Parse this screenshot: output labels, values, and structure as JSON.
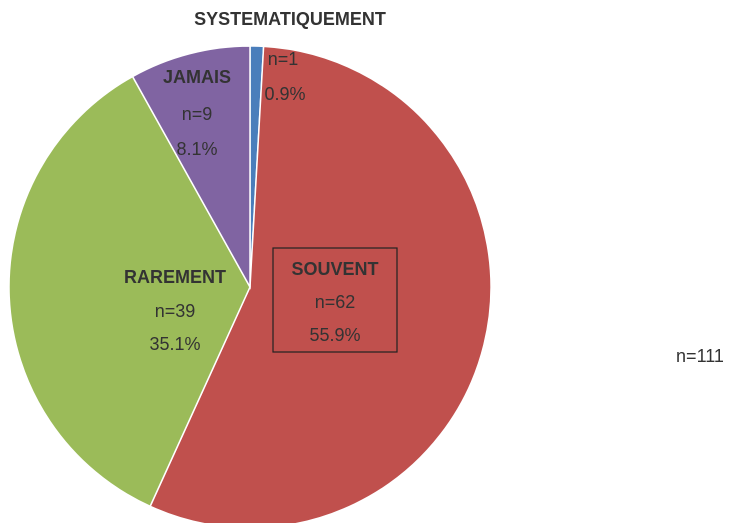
{
  "chart_data": {
    "type": "pie",
    "categories": [
      "SYSTEMATIQUEMENT",
      "SOUVENT",
      "RAREMENT",
      "JAMAIS"
    ],
    "count_labels": [
      "n=1",
      "n=62",
      "n=39",
      "n=9"
    ],
    "values": [
      0.9,
      55.9,
      35.1,
      8.1
    ],
    "value_labels": [
      "0.9%",
      "55.9%",
      "35.1%",
      "8.1%"
    ],
    "colors": [
      "#4a7ebb",
      "#c0504d",
      "#9bbb59",
      "#8064a2"
    ],
    "annotation": "n=111"
  }
}
